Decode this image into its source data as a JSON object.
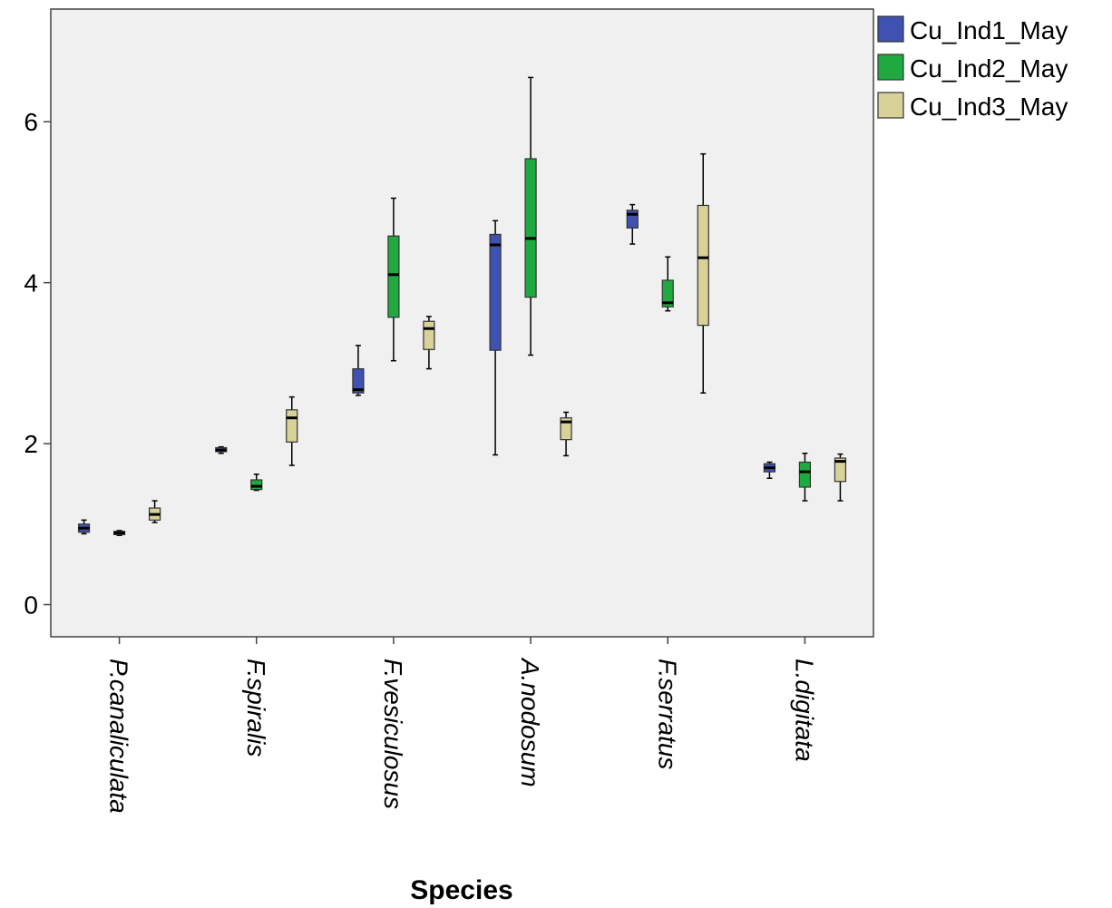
{
  "chart_data": {
    "type": "boxplot",
    "xlabel": "Species",
    "ylabel": "",
    "ylim": [
      -0.4,
      7.4
    ],
    "yticks": [
      0,
      2,
      4,
      6
    ],
    "categories": [
      "P.canaliculata",
      "F.spiralis",
      "F.vesiculosus",
      "A.nodosum",
      "F.serratus",
      "L.digitata"
    ],
    "legend_position": "right-top",
    "series": [
      {
        "name": "Cu_Ind1_May",
        "color": "#3f51b1",
        "boxes": [
          {
            "min": 0.88,
            "q1": 0.9,
            "median": 0.95,
            "q3": 1.0,
            "max": 1.05
          },
          {
            "min": 1.88,
            "q1": 1.9,
            "median": 1.92,
            "q3": 1.95,
            "max": 1.96
          },
          {
            "min": 2.6,
            "q1": 2.63,
            "median": 2.67,
            "q3": 2.93,
            "max": 3.22
          },
          {
            "min": 1.86,
            "q1": 3.16,
            "median": 4.47,
            "q3": 4.6,
            "max": 4.77
          },
          {
            "min": 4.48,
            "q1": 4.68,
            "median": 4.85,
            "q3": 4.9,
            "max": 4.97
          },
          {
            "min": 1.57,
            "q1": 1.65,
            "median": 1.7,
            "q3": 1.75,
            "max": 1.77
          }
        ]
      },
      {
        "name": "Cu_Ind2_May",
        "color": "#1faa3f",
        "boxes": [
          {
            "min": 0.86,
            "q1": 0.87,
            "median": 0.89,
            "q3": 0.91,
            "max": 0.92
          },
          {
            "min": 1.42,
            "q1": 1.43,
            "median": 1.47,
            "q3": 1.55,
            "max": 1.62
          },
          {
            "min": 3.03,
            "q1": 3.57,
            "median": 4.1,
            "q3": 4.58,
            "max": 5.05
          },
          {
            "min": 3.1,
            "q1": 3.82,
            "median": 4.55,
            "q3": 5.54,
            "max": 6.55
          },
          {
            "min": 3.65,
            "q1": 3.7,
            "median": 3.75,
            "q3": 4.03,
            "max": 4.32
          },
          {
            "min": 1.29,
            "q1": 1.46,
            "median": 1.65,
            "q3": 1.77,
            "max": 1.88
          }
        ]
      },
      {
        "name": "Cu_Ind3_May",
        "color": "#d8d198",
        "boxes": [
          {
            "min": 1.02,
            "q1": 1.05,
            "median": 1.12,
            "q3": 1.2,
            "max": 1.29
          },
          {
            "min": 1.73,
            "q1": 2.02,
            "median": 2.32,
            "q3": 2.42,
            "max": 2.58
          },
          {
            "min": 2.93,
            "q1": 3.17,
            "median": 3.43,
            "q3": 3.52,
            "max": 3.58
          },
          {
            "min": 1.85,
            "q1": 2.05,
            "median": 2.27,
            "q3": 2.32,
            "max": 2.39
          },
          {
            "min": 2.63,
            "q1": 3.47,
            "median": 4.31,
            "q3": 4.96,
            "max": 5.6
          },
          {
            "min": 1.29,
            "q1": 1.53,
            "median": 1.78,
            "q3": 1.82,
            "max": 1.87
          }
        ]
      }
    ]
  }
}
